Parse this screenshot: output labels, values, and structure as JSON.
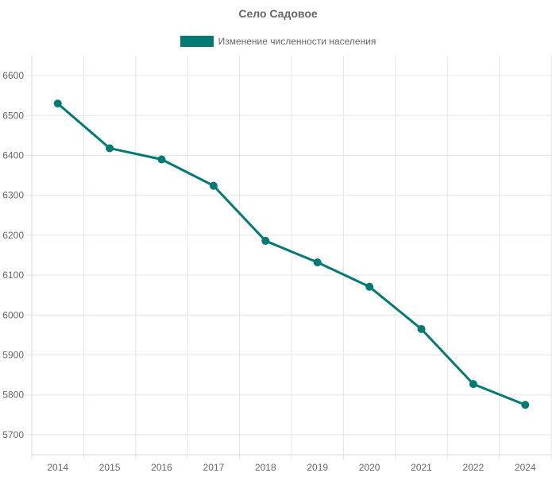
{
  "chart_data": {
    "type": "line",
    "title": "Село Садовое",
    "xlabel": "",
    "ylabel": "",
    "categories": [
      "2014",
      "2015",
      "2016",
      "2017",
      "2018",
      "2019",
      "2020",
      "2021",
      "2022",
      "2024"
    ],
    "series": [
      {
        "name": "Изменение численности населения",
        "values": [
          6530,
          6418,
          6390,
          6324,
          6186,
          6132,
          6071,
          5965,
          5827,
          5775
        ]
      }
    ],
    "ylim": [
      5650,
      6650
    ],
    "yticks": [
      5700,
      5800,
      5900,
      6000,
      6100,
      6200,
      6300,
      6400,
      6500,
      6600
    ],
    "grid": true,
    "legend_position": "top",
    "colors": {
      "series": "#007a73",
      "grid": "#e6e6e6",
      "axis": "#d9d9d9",
      "text": "#666666"
    }
  }
}
